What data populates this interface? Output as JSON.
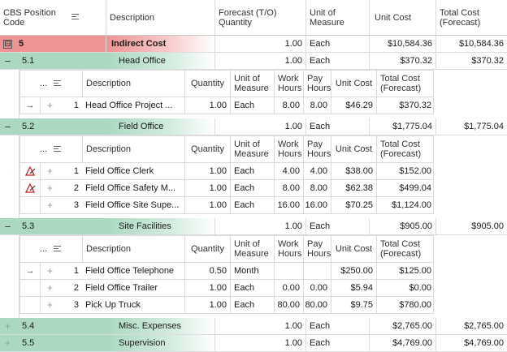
{
  "header": {
    "cbs": "CBS Position Code",
    "description": "Description",
    "forecast": "Forecast (T/O) Quantity",
    "uom": "Unit of Measure",
    "unit_cost": "Unit Cost",
    "total_cost": "Total Cost (Forecast)"
  },
  "detail_header": {
    "dots": "...",
    "description": "Description",
    "quantity": "Quantity",
    "uom": "Unit of Measure",
    "work_hours": "Work Hours",
    "pay_hours": "Pay Hours",
    "unit_cost": "Unit Cost",
    "total_cost": "Total Cost (Forecast)"
  },
  "colors": {
    "indirect": "#ee9494",
    "group": "#aad8c0"
  },
  "groups": [
    {
      "code": "5",
      "desc": "Indirect Cost",
      "qty": "1.00",
      "uom": "Each",
      "unit": "$10,584.36",
      "total": "$10,584.36",
      "expander": "⊟"
    },
    {
      "code": "5.1",
      "desc": "Head Office",
      "qty": "1.00",
      "uom": "Each",
      "unit": "$370.32",
      "total": "$370.32",
      "expander": "−",
      "items": [
        {
          "icon": "→",
          "num": "1",
          "desc": "Head Office Project ...",
          "qty": "1.00",
          "uom": "Each",
          "work": "8.00",
          "pay": "8.00",
          "unit": "$46.29",
          "total": "$370.32"
        }
      ]
    },
    {
      "code": "5.2",
      "desc": "Field Office",
      "qty": "1.00",
      "uom": "Each",
      "unit": "$1,775.04",
      "total": "$1,775.04",
      "expander": "−",
      "items": [
        {
          "icon": "warn",
          "num": "1",
          "desc": "Field Office Clerk",
          "qty": "1.00",
          "uom": "Each",
          "work": "4.00",
          "pay": "4.00",
          "unit": "$38.00",
          "total": "$152.00"
        },
        {
          "icon": "warn",
          "num": "2",
          "desc": "Field Office Safety M...",
          "qty": "1.00",
          "uom": "Each",
          "work": "8.00",
          "pay": "8.00",
          "unit": "$62.38",
          "total": "$499.04"
        },
        {
          "icon": "",
          "num": "3",
          "desc": "Field Office Site Supe...",
          "qty": "1.00",
          "uom": "Each",
          "work": "16.00",
          "pay": "16.00",
          "unit": "$70.25",
          "total": "$1,124.00"
        }
      ]
    },
    {
      "code": "5.3",
      "desc": "Site Facilities",
      "qty": "1.00",
      "uom": "Each",
      "unit": "$905.00",
      "total": "$905.00",
      "expander": "−",
      "items": [
        {
          "icon": "→",
          "num": "1",
          "desc": "Field Office Telephone",
          "qty": "0.50",
          "uom": "Month",
          "work": "",
          "pay": "",
          "unit": "$250.00",
          "total": "$125.00"
        },
        {
          "icon": "",
          "num": "2",
          "desc": "Field Office Trailer",
          "qty": "1.00",
          "uom": "Each",
          "work": "0.00",
          "pay": "0.00",
          "unit": "$5.94",
          "total": "$0.00"
        },
        {
          "icon": "",
          "num": "3",
          "desc": "Pick Up Truck",
          "qty": "1.00",
          "uom": "Each",
          "work": "80.00",
          "pay": "80.00",
          "unit": "$9.75",
          "total": "$780.00"
        }
      ]
    },
    {
      "code": "5.4",
      "desc": "Misc. Expenses",
      "qty": "1.00",
      "uom": "Each",
      "unit": "$2,765.00",
      "total": "$2,765.00",
      "expander": "+"
    },
    {
      "code": "5.5",
      "desc": "Supervision",
      "qty": "1.00",
      "uom": "Each",
      "unit": "$4,769.00",
      "total": "$4,769.00",
      "expander": "+"
    }
  ]
}
